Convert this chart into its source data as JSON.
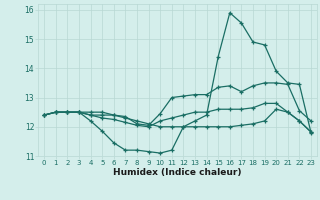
{
  "background_color": "#d4eeeb",
  "grid_color": "#b8d8d4",
  "line_color": "#1a6e64",
  "xlim": [
    -0.5,
    23.5
  ],
  "ylim": [
    11,
    16.2
  ],
  "yticks": [
    11,
    12,
    13,
    14,
    15,
    16
  ],
  "xticks": [
    0,
    1,
    2,
    3,
    4,
    5,
    6,
    7,
    8,
    9,
    10,
    11,
    12,
    13,
    14,
    15,
    16,
    17,
    18,
    19,
    20,
    21,
    22,
    23
  ],
  "xlabel": "Humidex (Indice chaleur)",
  "lines": [
    {
      "x": [
        0,
        1,
        2,
        3,
        4,
        5,
        6,
        7,
        8,
        9,
        10,
        11,
        12,
        13,
        14,
        15,
        16,
        17,
        18,
        19,
        20,
        21,
        22,
        23
      ],
      "y": [
        12.4,
        12.5,
        12.5,
        12.5,
        12.2,
        11.85,
        11.45,
        11.2,
        11.2,
        11.15,
        11.1,
        11.2,
        12.0,
        12.2,
        12.4,
        14.4,
        15.9,
        15.55,
        14.9,
        14.8,
        13.9,
        13.5,
        13.45,
        11.8
      ]
    },
    {
      "x": [
        0,
        1,
        2,
        3,
        4,
        5,
        6,
        7,
        8,
        9,
        10,
        11,
        12,
        13,
        14,
        15,
        16,
        17,
        18,
        19,
        20,
        21,
        22,
        23
      ],
      "y": [
        12.4,
        12.5,
        12.5,
        12.5,
        12.5,
        12.5,
        12.4,
        12.3,
        12.2,
        12.1,
        12.0,
        12.0,
        12.0,
        12.0,
        12.0,
        12.0,
        12.0,
        12.05,
        12.1,
        12.2,
        12.6,
        12.5,
        12.2,
        11.82
      ]
    },
    {
      "x": [
        0,
        1,
        2,
        3,
        4,
        5,
        6,
        7,
        8,
        9,
        10,
        11,
        12,
        13,
        14,
        15,
        16,
        17,
        18,
        19,
        20,
        21,
        22,
        23
      ],
      "y": [
        12.4,
        12.5,
        12.5,
        12.5,
        12.4,
        12.4,
        12.4,
        12.35,
        12.1,
        12.05,
        12.45,
        13.0,
        13.05,
        13.1,
        13.1,
        13.35,
        13.4,
        13.2,
        13.4,
        13.5,
        13.5,
        13.45,
        12.55,
        12.2
      ]
    },
    {
      "x": [
        0,
        1,
        2,
        3,
        4,
        5,
        6,
        7,
        8,
        9,
        10,
        11,
        12,
        13,
        14,
        15,
        16,
        17,
        18,
        19,
        20,
        21,
        22,
        23
      ],
      "y": [
        12.4,
        12.5,
        12.5,
        12.5,
        12.4,
        12.3,
        12.25,
        12.15,
        12.05,
        12.0,
        12.2,
        12.3,
        12.4,
        12.5,
        12.5,
        12.6,
        12.6,
        12.6,
        12.65,
        12.8,
        12.8,
        12.5,
        12.2,
        11.82
      ]
    }
  ]
}
